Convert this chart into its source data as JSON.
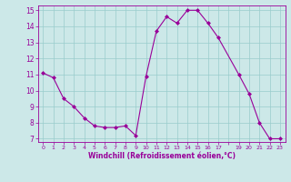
{
  "x": [
    0,
    1,
    2,
    3,
    4,
    5,
    6,
    7,
    8,
    9,
    10,
    11,
    12,
    13,
    14,
    15,
    16,
    17,
    19,
    20,
    21,
    22,
    23
  ],
  "y": [
    11.1,
    10.8,
    9.5,
    9.0,
    8.3,
    7.8,
    7.7,
    7.7,
    7.8,
    7.2,
    10.9,
    13.7,
    14.6,
    14.2,
    15.0,
    15.0,
    14.2,
    13.3,
    11.0,
    9.8,
    8.0,
    7.0,
    7.0
  ],
  "line_color": "#990099",
  "marker_color": "#990099",
  "bg_color": "#cce8e8",
  "grid_color": "#99cccc",
  "xlabel": "Windchill (Refroidissement éolien,°C)",
  "xlabel_color": "#990099",
  "tick_color": "#990099",
  "spine_color": "#990099",
  "ylim": [
    6.8,
    15.3
  ],
  "xlim": [
    -0.5,
    23.5
  ],
  "yticks": [
    7,
    8,
    9,
    10,
    11,
    12,
    13,
    14,
    15
  ],
  "xticks": [
    0,
    1,
    2,
    3,
    4,
    5,
    6,
    7,
    8,
    9,
    10,
    11,
    12,
    13,
    14,
    15,
    16,
    17,
    19,
    20,
    21,
    22,
    23
  ]
}
